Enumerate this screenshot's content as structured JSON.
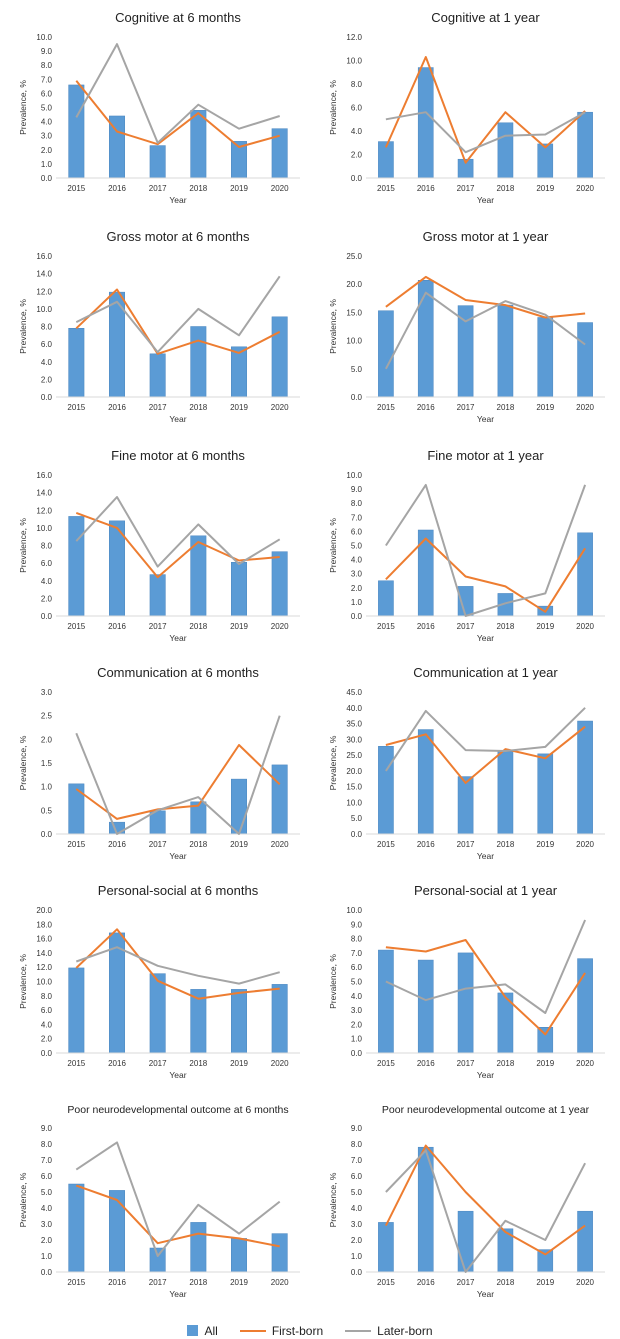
{
  "colors": {
    "bar": "#5b9bd5",
    "bar_edge": "#4a86bf",
    "first": "#ed7d31",
    "later": "#a5a5a5",
    "axis": "#d9d9d9",
    "text": "#333333"
  },
  "legend": {
    "all": "All",
    "first": "First-born",
    "later": "Later-born"
  },
  "chart_data": [
    {
      "type": "bar",
      "title": "Cognitive at 6 months",
      "xlabel": "Year",
      "ylabel": "Prevalence, %",
      "categories": [
        "2015",
        "2016",
        "2017",
        "2018",
        "2019",
        "2020"
      ],
      "ylim": [
        0,
        10
      ],
      "ytick_step": 1,
      "ytick_labels": [
        "0.0",
        "1.0",
        "2.0",
        "3.0",
        "4.0",
        "5.0",
        "6.0",
        "7.0",
        "8.0",
        "9.0",
        "10.0"
      ],
      "series": [
        {
          "name": "All",
          "kind": "bar",
          "values": [
            6.6,
            4.4,
            2.3,
            4.8,
            2.6,
            3.5
          ]
        },
        {
          "name": "First-born",
          "kind": "line",
          "values": [
            6.9,
            3.3,
            2.4,
            4.6,
            2.2,
            3.0
          ]
        },
        {
          "name": "Later-born",
          "kind": "line",
          "values": [
            4.3,
            9.5,
            2.5,
            5.2,
            3.5,
            4.4
          ]
        }
      ]
    },
    {
      "type": "bar",
      "title": "Cognitive at 1 year",
      "xlabel": "Year",
      "ylabel": "Prevalence, %",
      "categories": [
        "2015",
        "2016",
        "2017",
        "2018",
        "2019",
        "2020"
      ],
      "ylim": [
        0,
        12
      ],
      "ytick_step": 2,
      "ytick_labels": [
        "0.0",
        "2.0",
        "4.0",
        "6.0",
        "8.0",
        "10.0",
        "12.0"
      ],
      "series": [
        {
          "name": "All",
          "kind": "bar",
          "values": [
            3.1,
            9.4,
            1.6,
            4.7,
            2.9,
            5.6
          ]
        },
        {
          "name": "First-born",
          "kind": "line",
          "values": [
            2.6,
            10.3,
            1.3,
            5.6,
            2.6,
            5.7
          ]
        },
        {
          "name": "Later-born",
          "kind": "line",
          "values": [
            5.0,
            5.6,
            2.2,
            3.6,
            3.7,
            5.6
          ]
        }
      ]
    },
    {
      "type": "bar",
      "title": "Gross motor at 6 months",
      "xlabel": "Year",
      "ylabel": "Prevalence, %",
      "categories": [
        "2015",
        "2016",
        "2017",
        "2018",
        "2019",
        "2020"
      ],
      "ylim": [
        0,
        16
      ],
      "ytick_step": 2,
      "ytick_labels": [
        "0.0",
        "2.0",
        "4.0",
        "6.0",
        "8.0",
        "10.0",
        "12.0",
        "14.0",
        "16.0"
      ],
      "series": [
        {
          "name": "All",
          "kind": "bar",
          "values": [
            7.8,
            11.9,
            4.9,
            8.0,
            5.7,
            9.1
          ]
        },
        {
          "name": "First-born",
          "kind": "line",
          "values": [
            7.8,
            12.2,
            4.9,
            6.4,
            5.0,
            7.4
          ]
        },
        {
          "name": "Later-born",
          "kind": "line",
          "values": [
            8.5,
            10.8,
            5.1,
            10.0,
            7.0,
            13.7
          ]
        }
      ]
    },
    {
      "type": "bar",
      "title": "Gross motor at 1 year",
      "xlabel": "Year",
      "ylabel": "Prevalence, %",
      "categories": [
        "2015",
        "2016",
        "2017",
        "2018",
        "2019",
        "2020"
      ],
      "ylim": [
        0,
        25
      ],
      "ytick_step": 5,
      "ytick_labels": [
        "0.0",
        "5.0",
        "10.0",
        "15.0",
        "20.0",
        "25.0"
      ],
      "series": [
        {
          "name": "All",
          "kind": "bar",
          "values": [
            15.3,
            20.7,
            16.2,
            16.3,
            14.1,
            13.2
          ]
        },
        {
          "name": "First-born",
          "kind": "line",
          "values": [
            16.0,
            21.3,
            17.2,
            16.3,
            14.1,
            14.8
          ]
        },
        {
          "name": "Later-born",
          "kind": "line",
          "values": [
            5.0,
            18.5,
            13.4,
            17.0,
            14.6,
            9.3
          ]
        }
      ]
    },
    {
      "type": "bar",
      "title": "Fine motor at 6 months",
      "xlabel": "Year",
      "ylabel": "Prevalence, %",
      "categories": [
        "2015",
        "2016",
        "2017",
        "2018",
        "2019",
        "2020"
      ],
      "ylim": [
        0,
        16
      ],
      "ytick_step": 2,
      "ytick_labels": [
        "0.0",
        "2.0",
        "4.0",
        "6.0",
        "8.0",
        "10.0",
        "12.0",
        "14.0",
        "16.0"
      ],
      "series": [
        {
          "name": "All",
          "kind": "bar",
          "values": [
            11.3,
            10.8,
            4.7,
            9.1,
            6.1,
            7.3
          ]
        },
        {
          "name": "First-born",
          "kind": "line",
          "values": [
            11.7,
            10.0,
            4.4,
            8.4,
            6.3,
            6.7
          ]
        },
        {
          "name": "Later-born",
          "kind": "line",
          "values": [
            8.5,
            13.5,
            5.6,
            10.4,
            5.9,
            8.7
          ]
        }
      ]
    },
    {
      "type": "bar",
      "title": "Fine motor at 1 year",
      "xlabel": "Year",
      "ylabel": "Prevalence, %",
      "categories": [
        "2015",
        "2016",
        "2017",
        "2018",
        "2019",
        "2020"
      ],
      "ylim": [
        0,
        10
      ],
      "ytick_step": 1,
      "ytick_labels": [
        "0.0",
        "1.0",
        "2.0",
        "3.0",
        "4.0",
        "5.0",
        "6.0",
        "7.0",
        "8.0",
        "9.0",
        "10.0"
      ],
      "series": [
        {
          "name": "All",
          "kind": "bar",
          "values": [
            2.5,
            6.1,
            2.1,
            1.6,
            0.7,
            5.9
          ]
        },
        {
          "name": "First-born",
          "kind": "line",
          "values": [
            2.6,
            5.5,
            2.8,
            2.1,
            0.3,
            4.8
          ]
        },
        {
          "name": "Later-born",
          "kind": "line",
          "values": [
            5.0,
            9.3,
            0.0,
            0.9,
            1.6,
            9.3
          ]
        }
      ]
    },
    {
      "type": "bar",
      "title": "Communication at 6 months",
      "xlabel": "Year",
      "ylabel": "Prevalence, %",
      "categories": [
        "2015",
        "2016",
        "2017",
        "2018",
        "2019",
        "2020"
      ],
      "ylim": [
        0,
        3
      ],
      "ytick_step": 0.5,
      "ytick_labels": [
        "0.0",
        "0.5",
        "1.0",
        "1.5",
        "2.0",
        "2.5",
        "3.0"
      ],
      "series": [
        {
          "name": "All",
          "kind": "bar",
          "values": [
            1.06,
            0.25,
            0.49,
            0.68,
            1.16,
            1.46
          ]
        },
        {
          "name": "First-born",
          "kind": "line",
          "values": [
            0.95,
            0.32,
            0.52,
            0.6,
            1.88,
            1.05
          ]
        },
        {
          "name": "Later-born",
          "kind": "line",
          "values": [
            2.13,
            0.0,
            0.5,
            0.78,
            0.0,
            2.5
          ]
        }
      ]
    },
    {
      "type": "bar",
      "title": "Communication at 1 year",
      "xlabel": "Year",
      "ylabel": "Prevalence, %",
      "categories": [
        "2015",
        "2016",
        "2017",
        "2018",
        "2019",
        "2020"
      ],
      "ylim": [
        0,
        45
      ],
      "ytick_step": 5,
      "ytick_labels": [
        "0.0",
        "5.0",
        "10.0",
        "15.0",
        "20.0",
        "25.0",
        "30.0",
        "35.0",
        "40.0",
        "45.0"
      ],
      "series": [
        {
          "name": "All",
          "kind": "bar",
          "values": [
            27.8,
            33.1,
            18.2,
            26.1,
            25.4,
            35.8
          ]
        },
        {
          "name": "First-born",
          "kind": "line",
          "values": [
            28.2,
            31.6,
            16.2,
            26.9,
            24.0,
            34.0
          ]
        },
        {
          "name": "Later-born",
          "kind": "line",
          "values": [
            20.0,
            39.0,
            26.6,
            26.3,
            27.6,
            40.0
          ]
        }
      ]
    },
    {
      "type": "bar",
      "title": "Personal-social at 6 months",
      "xlabel": "Year",
      "ylabel": "Prevalence, %",
      "categories": [
        "2015",
        "2016",
        "2017",
        "2018",
        "2019",
        "2020"
      ],
      "ylim": [
        0,
        20
      ],
      "ytick_step": 2,
      "ytick_labels": [
        "0.0",
        "2.0",
        "4.0",
        "6.0",
        "8.0",
        "10.0",
        "12.0",
        "14.0",
        "16.0",
        "18.0",
        "20.0"
      ],
      "series": [
        {
          "name": "All",
          "kind": "bar",
          "values": [
            11.9,
            16.8,
            11.1,
            8.9,
            8.9,
            9.6
          ]
        },
        {
          "name": "First-born",
          "kind": "line",
          "values": [
            11.9,
            17.3,
            10.1,
            7.6,
            8.4,
            9.0
          ]
        },
        {
          "name": "Later-born",
          "kind": "line",
          "values": [
            12.8,
            14.8,
            12.2,
            10.8,
            9.7,
            11.3
          ]
        }
      ]
    },
    {
      "type": "bar",
      "title": "Personal-social at 1 year",
      "xlabel": "Year",
      "ylabel": "Prevalence, %",
      "categories": [
        "2015",
        "2016",
        "2017",
        "2018",
        "2019",
        "2020"
      ],
      "ylim": [
        0,
        10
      ],
      "ytick_step": 1,
      "ytick_labels": [
        "0.0",
        "1.0",
        "2.0",
        "3.0",
        "4.0",
        "5.0",
        "6.0",
        "7.0",
        "8.0",
        "9.0",
        "10.0"
      ],
      "series": [
        {
          "name": "All",
          "kind": "bar",
          "values": [
            7.2,
            6.5,
            7.0,
            4.2,
            1.8,
            6.6
          ]
        },
        {
          "name": "First-born",
          "kind": "line",
          "values": [
            7.4,
            7.1,
            7.9,
            3.9,
            1.3,
            5.6
          ]
        },
        {
          "name": "Later-born",
          "kind": "line",
          "values": [
            5.0,
            3.7,
            4.5,
            4.8,
            2.8,
            9.3
          ]
        }
      ]
    },
    {
      "type": "bar",
      "title": "Poor neurodevelopmental outcome at 6 months",
      "xlabel": "Year",
      "ylabel": "Prevalence, %",
      "categories": [
        "2015",
        "2016",
        "2017",
        "2018",
        "2019",
        "2020"
      ],
      "ylim": [
        0,
        9
      ],
      "ytick_step": 1,
      "ytick_labels": [
        "0.0",
        "1.0",
        "2.0",
        "3.0",
        "4.0",
        "5.0",
        "6.0",
        "7.0",
        "8.0",
        "9.0"
      ],
      "series": [
        {
          "name": "All",
          "kind": "bar",
          "values": [
            5.5,
            5.1,
            1.5,
            3.1,
            2.1,
            2.4
          ]
        },
        {
          "name": "First-born",
          "kind": "line",
          "values": [
            5.4,
            4.5,
            1.8,
            2.4,
            2.1,
            1.6
          ]
        },
        {
          "name": "Later-born",
          "kind": "line",
          "values": [
            6.4,
            8.1,
            1.0,
            4.2,
            2.4,
            4.4
          ]
        }
      ]
    },
    {
      "type": "bar",
      "title": "Poor neurodevelopmental outcome at 1 year",
      "xlabel": "Year",
      "ylabel": "Prevalence, %",
      "categories": [
        "2015",
        "2016",
        "2017",
        "2018",
        "2019",
        "2020"
      ],
      "ylim": [
        0,
        9
      ],
      "ytick_step": 1,
      "ytick_labels": [
        "0.0",
        "1.0",
        "2.0",
        "3.0",
        "4.0",
        "5.0",
        "6.0",
        "7.0",
        "8.0",
        "9.0"
      ],
      "series": [
        {
          "name": "All",
          "kind": "bar",
          "values": [
            3.1,
            7.8,
            3.8,
            2.7,
            1.4,
            3.8
          ]
        },
        {
          "name": "First-born",
          "kind": "line",
          "values": [
            2.9,
            7.9,
            5.0,
            2.5,
            1.1,
            2.9
          ]
        },
        {
          "name": "Later-born",
          "kind": "line",
          "values": [
            5.0,
            7.6,
            0.0,
            3.2,
            2.0,
            6.8
          ]
        }
      ]
    }
  ]
}
